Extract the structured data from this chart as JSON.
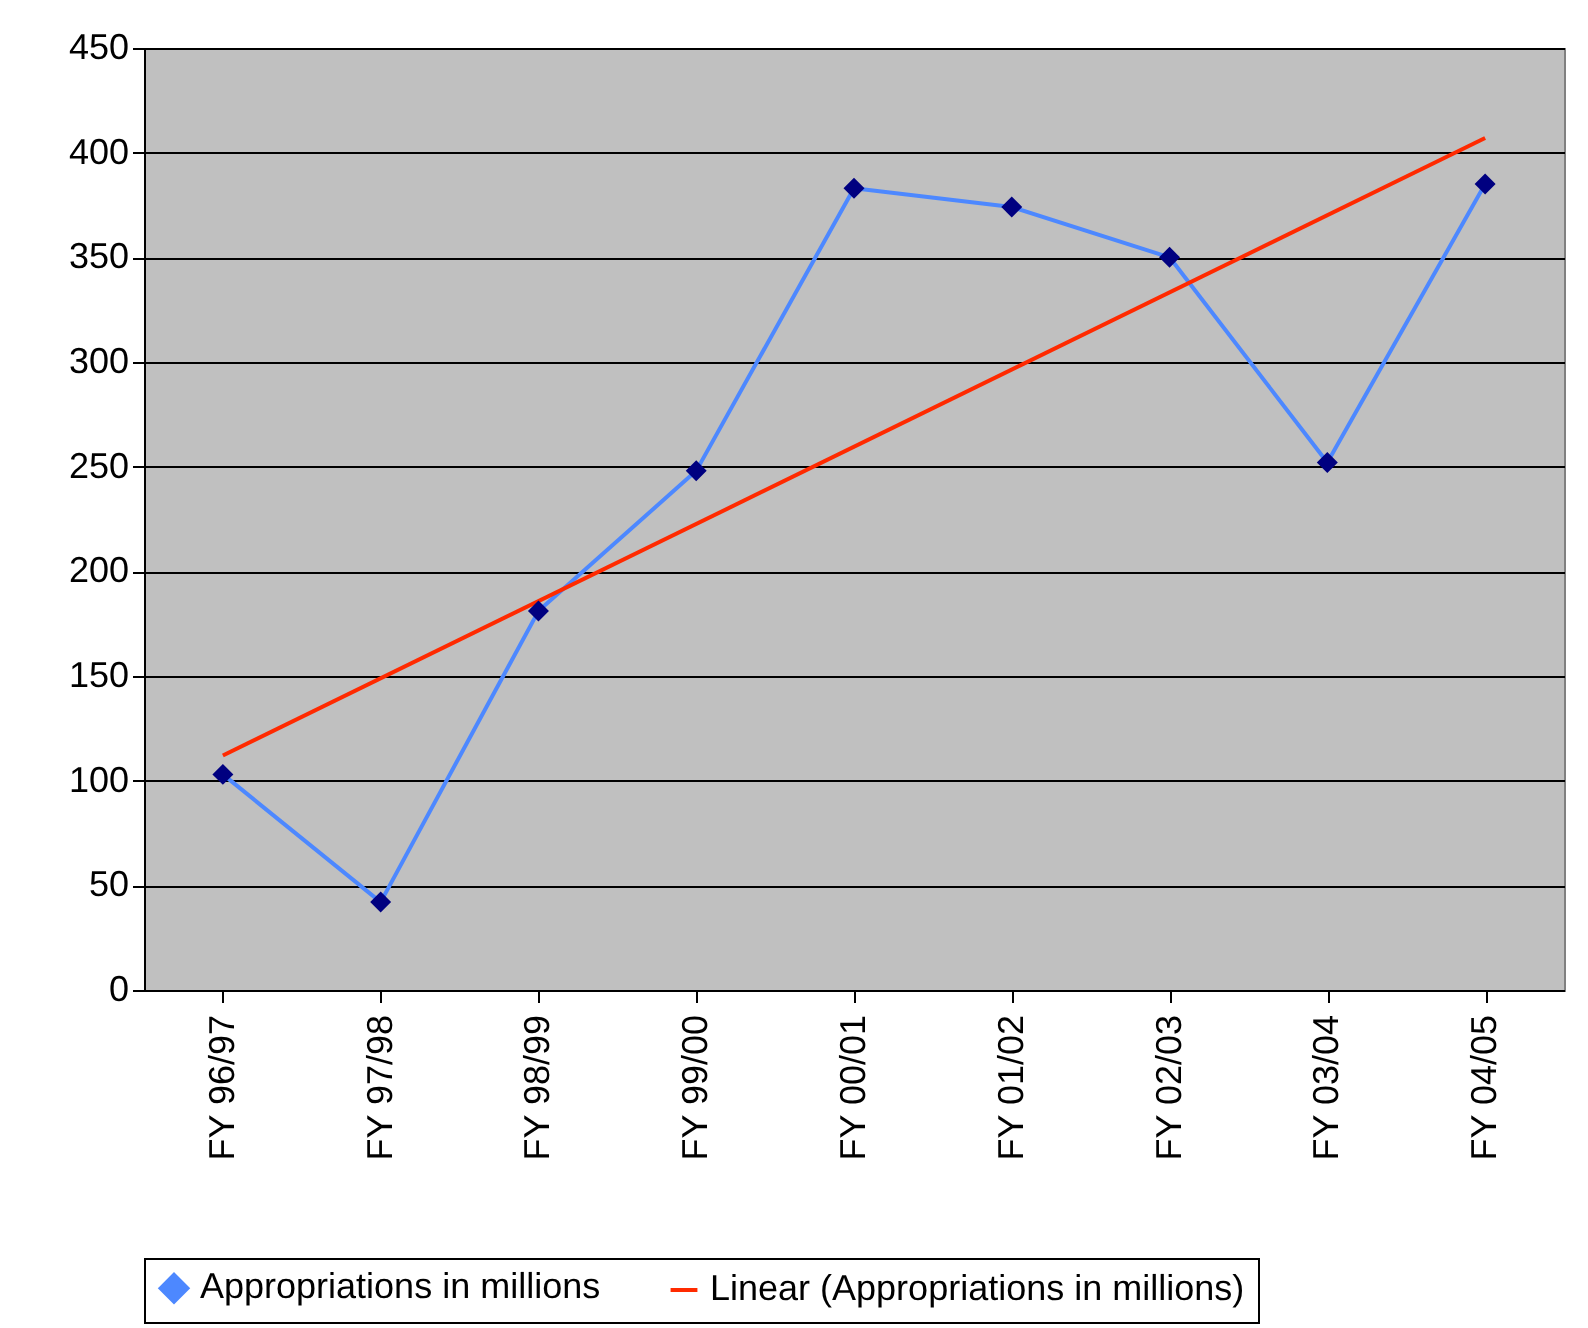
{
  "chart_data": {
    "type": "line",
    "categories": [
      "FY 96/97",
      "FY 97/98",
      "FY 98/99",
      "FY 99/00",
      "FY 00/01",
      "FY 01/02",
      "FY 02/03",
      "FY 03/04",
      "FY 04/05"
    ],
    "series": [
      {
        "name": "Appropriations in millions",
        "color": "#4d88ff",
        "marker": "diamond",
        "values": [
          103,
          42,
          181,
          248,
          383,
          374,
          350,
          252,
          385
        ]
      },
      {
        "name": "Linear (Appropriations in millions)",
        "type": "line",
        "color": "#ff2a00",
        "marker": "none",
        "x": [
          "FY 96/97",
          "FY 04/05"
        ],
        "values": [
          112,
          407
        ]
      }
    ],
    "ylim": [
      0,
      450
    ],
    "yticks": [
      0,
      50,
      100,
      150,
      200,
      250,
      300,
      350,
      400,
      450
    ],
    "grid": "y",
    "legend": "bottom"
  }
}
